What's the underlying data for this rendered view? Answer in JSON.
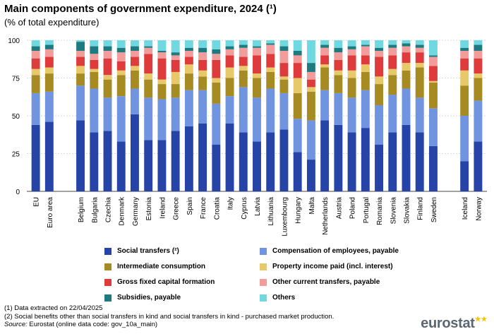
{
  "title": "Main components of government expenditure, 2024 (¹)",
  "subtitle": "(% of total expenditure)",
  "chart_data": {
    "type": "bar",
    "stacked": true,
    "ylim": [
      0,
      100
    ],
    "yticks": [
      0,
      25,
      50,
      75,
      100
    ],
    "gridlines": true,
    "categories": [
      "EU",
      "Euro area",
      "Belgium",
      "Bulgaria",
      "Czechia",
      "Denmark",
      "Germany",
      "Estonia",
      "Ireland",
      "Greece",
      "Spain",
      "France",
      "Croatia",
      "Italy",
      "Cyprus",
      "Latvia",
      "Lithuania",
      "Luxembourg",
      "Hungary",
      "Malta",
      "Netherlands",
      "Austria",
      "Poland",
      "Portugal",
      "Romania",
      "Slovenia",
      "Slovakia",
      "Finland",
      "Sweden",
      "Iceland",
      "Norway"
    ],
    "groups_gap_after": [
      1,
      28
    ],
    "series": [
      {
        "name": "Social transfers (²)",
        "color": "#2644a7",
        "values": [
          44,
          46,
          47,
          39,
          40,
          33,
          51,
          34,
          34,
          40,
          43,
          45,
          31,
          45,
          39,
          33,
          39,
          41,
          26,
          21,
          47,
          44,
          39,
          42,
          31,
          39,
          44,
          39,
          30,
          20,
          33
        ]
      },
      {
        "name": "Compensation of employees, payable",
        "color": "#7094e0",
        "values": [
          21,
          20,
          23,
          29,
          22,
          30,
          17,
          28,
          27,
          22,
          24,
          22,
          27,
          18,
          30,
          29,
          29,
          24,
          22,
          26,
          20,
          21,
          23,
          25,
          26,
          25,
          24,
          23,
          25,
          30,
          27
        ]
      },
      {
        "name": "Intermediate consumption",
        "color": "#a68b22",
        "values": [
          12,
          12,
          8,
          11,
          12,
          14,
          12,
          12,
          10,
          9,
          11,
          9,
          14,
          12,
          11,
          13,
          11,
          9,
          17,
          19,
          15,
          12,
          13,
          12,
          14,
          13,
          12,
          20,
          17,
          20,
          15
        ]
      },
      {
        "name": "Property income paid (incl. interest)",
        "color": "#e8c96a",
        "values": [
          4,
          4,
          5,
          2,
          3,
          3,
          3,
          4,
          3,
          8,
          6,
          4,
          3,
          7,
          3,
          3,
          3,
          2,
          10,
          3,
          2,
          3,
          5,
          5,
          5,
          4,
          5,
          3,
          1,
          10,
          3
        ]
      },
      {
        "name": "Gross fixed capital formation",
        "color": "#de3c3c",
        "values": [
          7,
          7,
          6,
          6,
          11,
          6,
          6,
          13,
          14,
          8,
          5,
          7,
          12,
          8,
          6,
          12,
          9,
          9,
          10,
          5,
          6,
          7,
          10,
          6,
          13,
          9,
          7,
          7,
          10,
          8,
          10
        ]
      },
      {
        "name": "Other current transfers, payable",
        "color": "#f29c9c",
        "values": [
          5,
          5,
          4,
          4,
          5,
          6,
          4,
          4,
          4,
          3,
          4,
          5,
          4,
          4,
          6,
          5,
          6,
          8,
          5,
          5,
          5,
          5,
          4,
          6,
          4,
          5,
          4,
          3,
          6,
          5,
          5
        ]
      },
      {
        "name": "Subsidies, payable",
        "color": "#1f7a7f",
        "values": [
          3,
          3,
          6,
          5,
          3,
          3,
          3,
          1,
          1,
          2,
          2,
          3,
          3,
          2,
          2,
          1,
          1,
          3,
          3,
          6,
          2,
          3,
          2,
          1,
          2,
          2,
          2,
          2,
          1,
          2,
          4
        ]
      },
      {
        "name": "Others",
        "color": "#6fd8e0",
        "values": [
          4,
          3,
          1,
          4,
          4,
          5,
          4,
          4,
          7,
          8,
          5,
          5,
          6,
          4,
          3,
          4,
          2,
          4,
          7,
          15,
          3,
          5,
          4,
          3,
          5,
          3,
          2,
          3,
          10,
          5,
          3
        ]
      }
    ]
  },
  "notes": {
    "note1": "(1) Data extracted  on 22/04/2025",
    "note2": "(2) Social benefits other than  social transfers  in kind and social transfers  in kind - purchased market production.",
    "source_label": "Source:",
    "source_text": " Eurostat (online data code: gov_10a_main)"
  },
  "logo": {
    "text": "eurostat",
    "stars": "★★"
  }
}
